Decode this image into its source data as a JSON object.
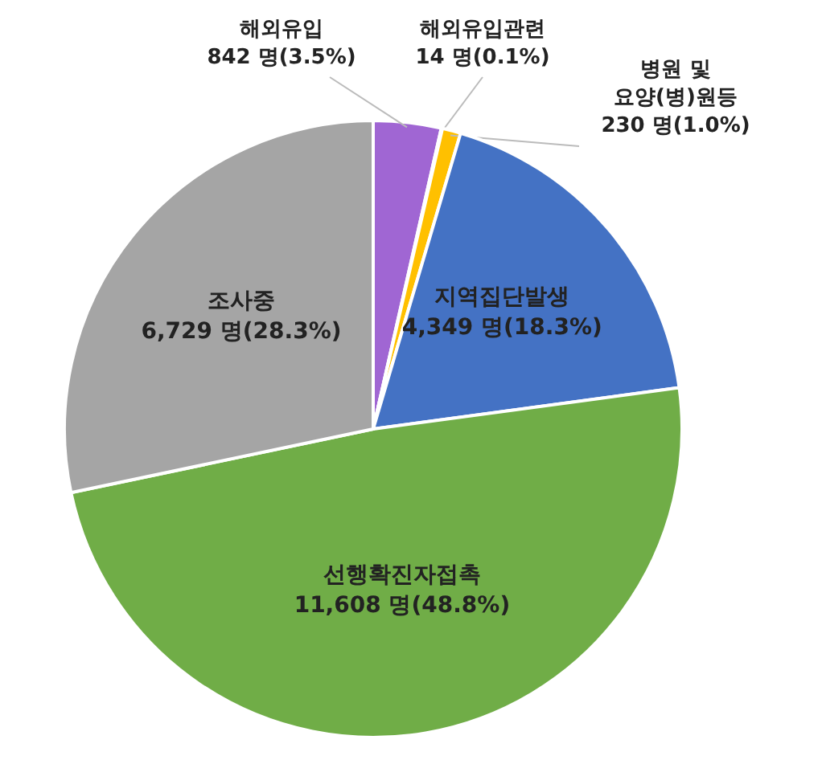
{
  "chart_data": {
    "type": "pie",
    "categories": [
      "해외유입",
      "해외유입관련",
      "병원 및 요양(병)원등",
      "지역집단발생",
      "선행확진자접촉",
      "조사중"
    ],
    "values": [
      842,
      14,
      230,
      4349,
      11608,
      6729
    ],
    "value_labels": [
      "842 명(3.5%)",
      "14 명(0.1%)",
      "230 명(1.0%)",
      "4,349 명(18.3%)",
      "11,608 명(48.8%)",
      "6,729 명(28.3%)"
    ],
    "colors": [
      "#a066d3",
      "#264478",
      "#ffc000",
      "#4472c4",
      "#70ad47",
      "#a5a5a5"
    ]
  }
}
